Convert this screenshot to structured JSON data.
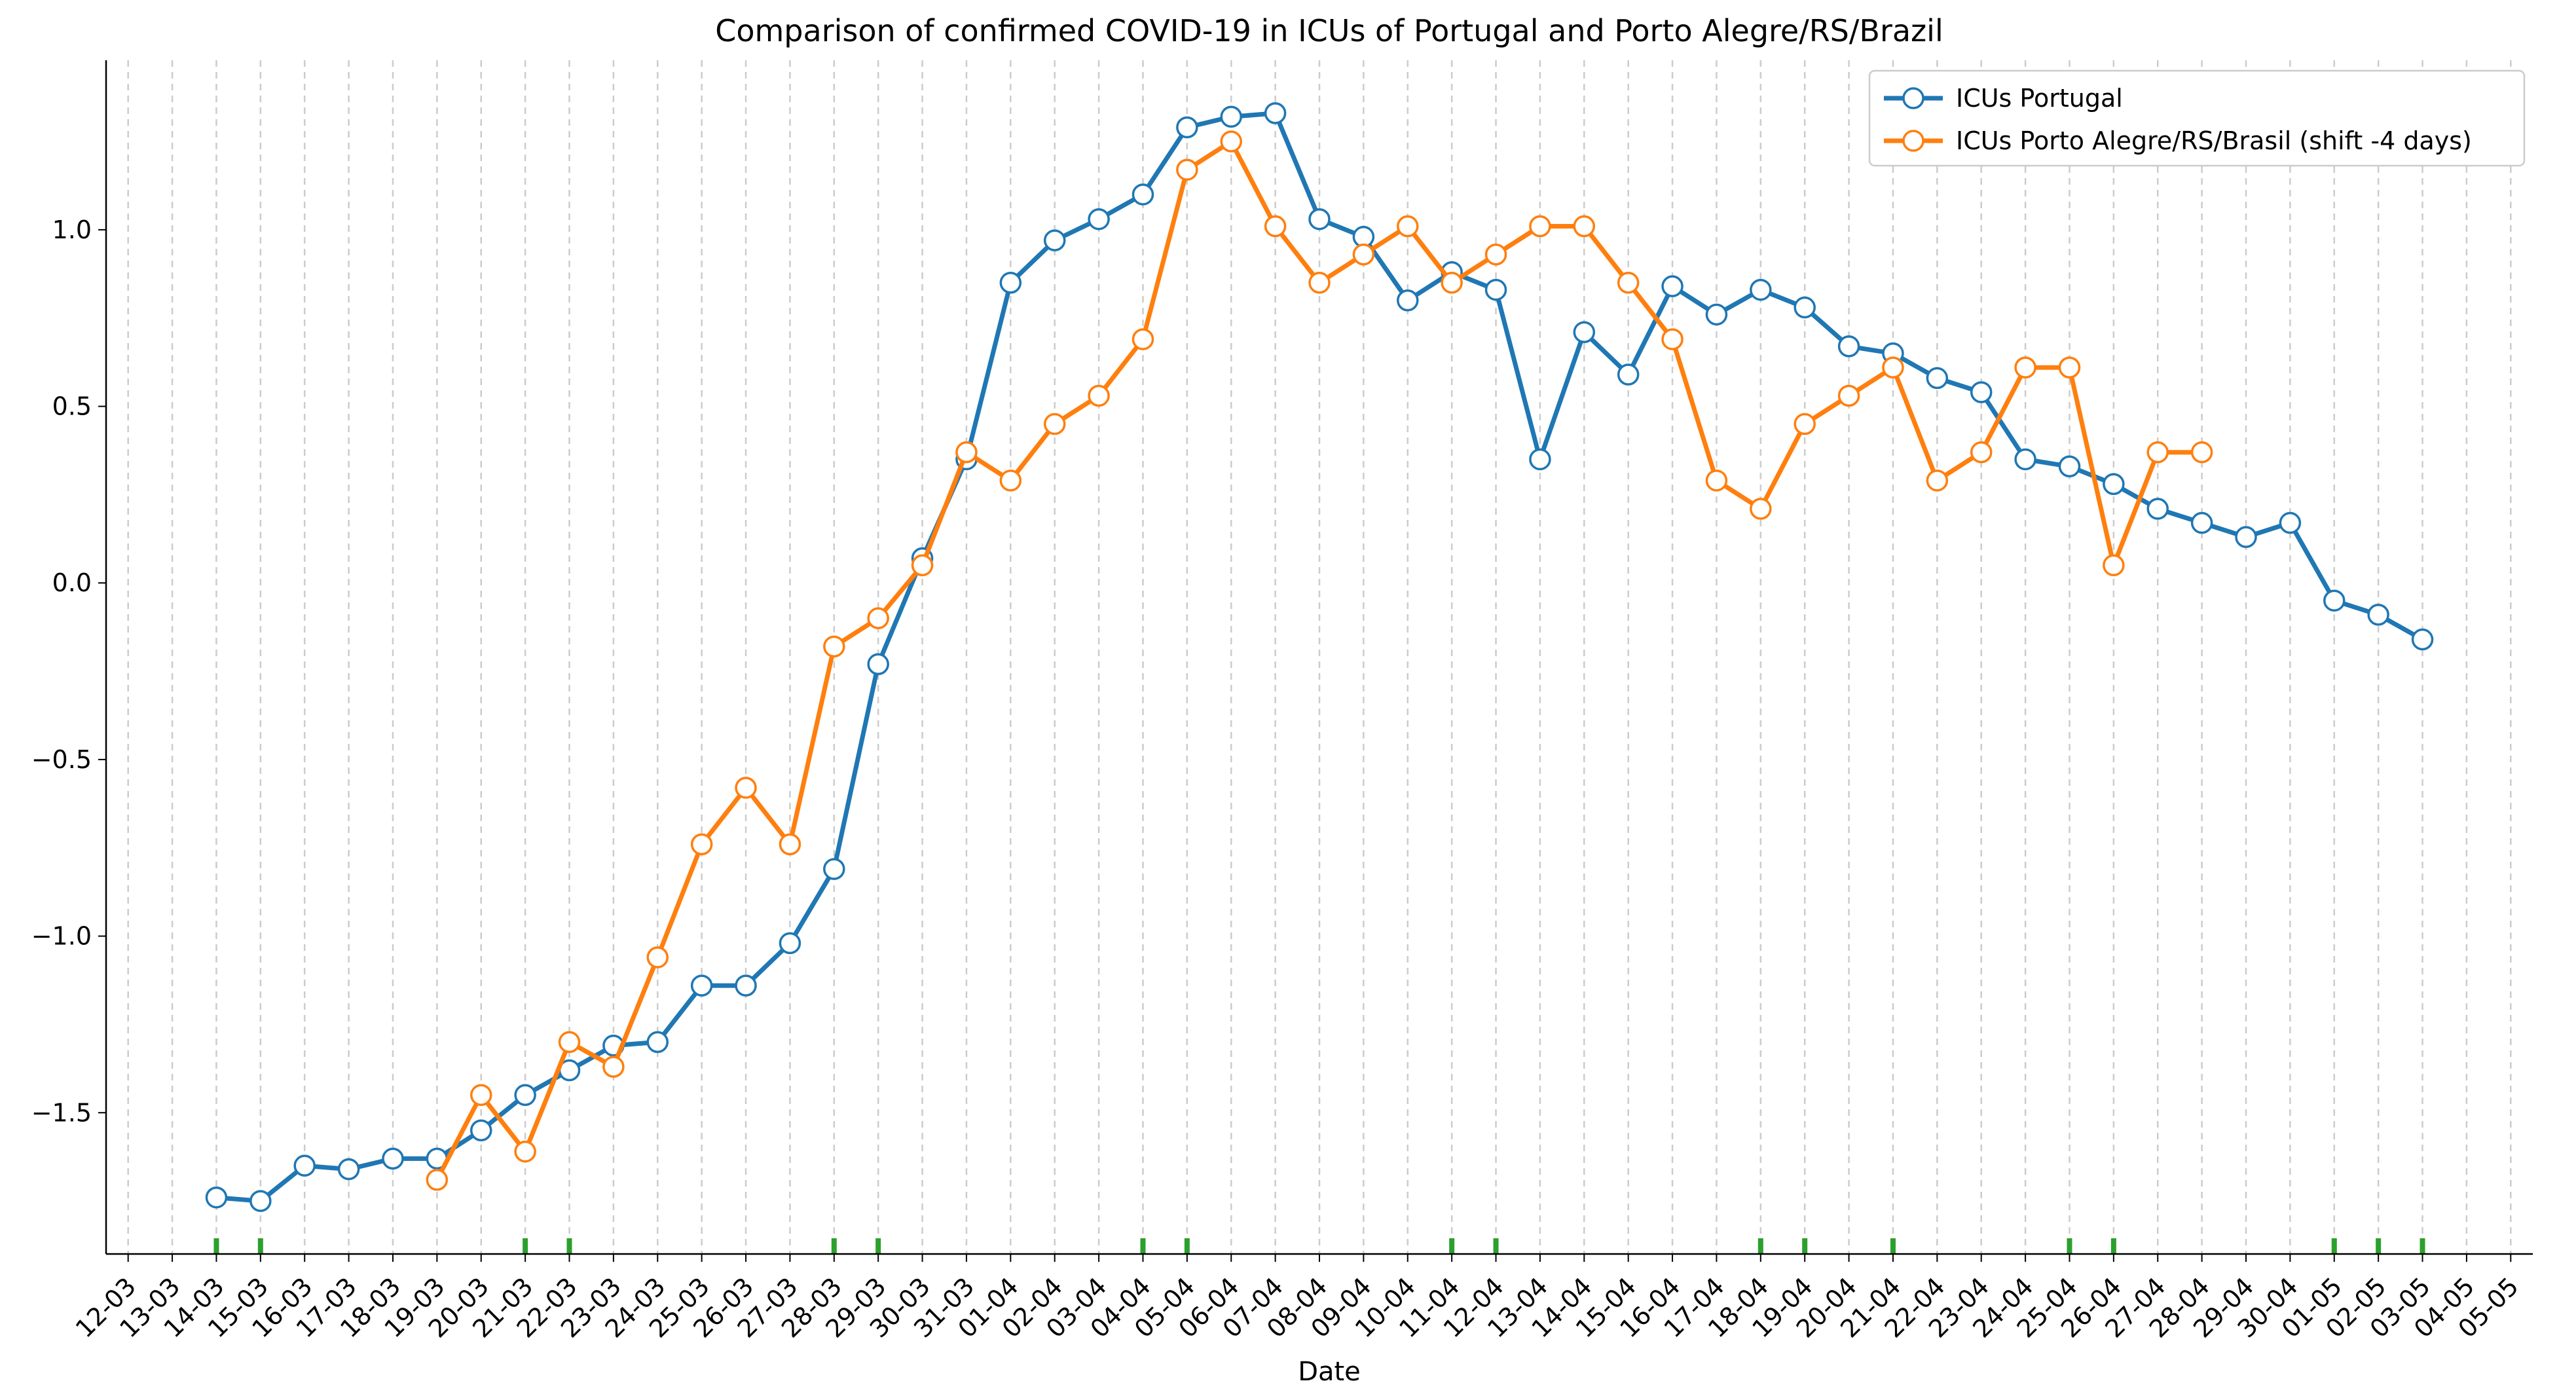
{
  "chart_data": {
    "type": "line",
    "title": "Comparison of confirmed COVID-19 in ICUs of Portugal and Porto Alegre/RS/Brazil",
    "xlabel": "Date",
    "ylabel": "",
    "x_ticks": [
      "12-03",
      "13-03",
      "14-03",
      "15-03",
      "16-03",
      "17-03",
      "18-03",
      "19-03",
      "20-03",
      "21-03",
      "22-03",
      "23-03",
      "24-03",
      "25-03",
      "26-03",
      "27-03",
      "28-03",
      "29-03",
      "30-03",
      "31-03",
      "01-04",
      "02-04",
      "03-04",
      "04-04",
      "05-04",
      "06-04",
      "07-04",
      "08-04",
      "09-04",
      "10-04",
      "11-04",
      "12-04",
      "13-04",
      "14-04",
      "15-04",
      "16-04",
      "17-04",
      "18-04",
      "19-04",
      "20-04",
      "21-04",
      "22-04",
      "23-04",
      "24-04",
      "25-04",
      "26-04",
      "27-04",
      "28-04",
      "29-04",
      "30-04",
      "01-05",
      "02-05",
      "03-05",
      "04-05",
      "05-05"
    ],
    "y_ticks": [
      -1.5,
      -1.0,
      -0.5,
      0.0,
      0.5,
      1.0
    ],
    "y_tick_labels": [
      "−1.5",
      "−1.0",
      "−0.5",
      "0.0",
      "0.5",
      "1.0"
    ],
    "ylim": [
      -1.9,
      1.48
    ],
    "xlim": [
      -0.5,
      54.5
    ],
    "grid": "vertical dashed",
    "legend_position": "upper-right",
    "weekend_marker_days": [
      "14-03",
      "15-03",
      "21-03",
      "22-03",
      "28-03",
      "29-03",
      "04-04",
      "05-04",
      "11-04",
      "12-04",
      "18-04",
      "19-04",
      "21-04",
      "25-04",
      "26-04",
      "01-05",
      "02-05",
      "03-05"
    ],
    "weekend_marker_color": "#2ca02c",
    "series": [
      {
        "name": "ICUs Portugal",
        "color": "#1f77b4",
        "start": "14-03",
        "values": [
          -1.74,
          -1.75,
          -1.65,
          -1.66,
          -1.63,
          -1.63,
          -1.55,
          -1.45,
          -1.38,
          -1.31,
          -1.3,
          -1.14,
          -1.14,
          -1.02,
          -0.81,
          -0.23,
          0.07,
          0.35,
          0.85,
          0.97,
          1.03,
          1.1,
          1.29,
          1.32,
          1.33,
          1.03,
          0.98,
          0.8,
          0.88,
          0.83,
          0.35,
          0.71,
          0.59,
          0.84,
          0.76,
          0.83,
          0.78,
          0.67,
          0.65,
          0.58,
          0.54,
          0.35,
          0.33,
          0.28,
          0.21,
          0.17,
          0.13,
          0.17,
          -0.05,
          -0.09,
          -0.16
        ]
      },
      {
        "name": "ICUs Porto Alegre/RS/Brasil (shift -4 days)",
        "color": "#ff7f0e",
        "start": "19-03",
        "values": [
          -1.69,
          -1.45,
          -1.61,
          -1.3,
          -1.37,
          -1.06,
          -0.74,
          -0.58,
          -0.74,
          -0.18,
          -0.1,
          0.05,
          0.37,
          0.29,
          0.45,
          0.53,
          0.69,
          1.17,
          1.25,
          1.01,
          0.85,
          0.93,
          1.01,
          0.85,
          0.93,
          1.01,
          1.01,
          0.85,
          0.69,
          0.29,
          0.21,
          0.45,
          0.53,
          0.61,
          0.29,
          0.37,
          0.61,
          0.61,
          0.05,
          0.37,
          0.37
        ]
      }
    ]
  }
}
